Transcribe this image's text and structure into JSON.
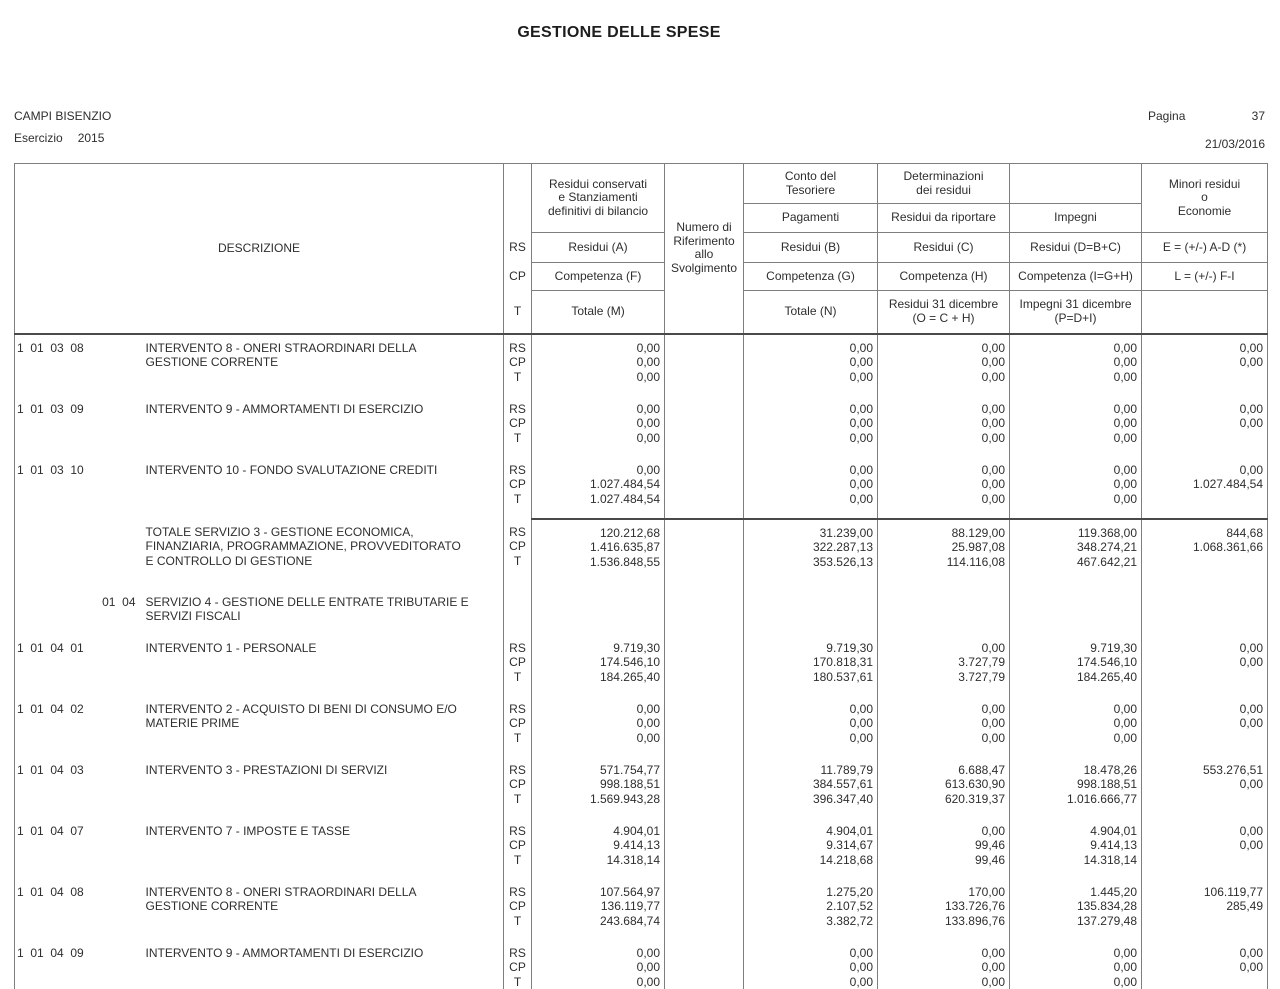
{
  "page": {
    "title": "GESTIONE DELLE SPESE",
    "entity": "CAMPI BISENZIO",
    "esercizio_label": "Esercizio",
    "esercizio_value": "2015",
    "pagina_label": "Pagina",
    "pagina_value": "37",
    "date": "21/03/2016"
  },
  "colors": {
    "background": "#ffffff",
    "text": "#2e2e2e",
    "grid_line": "#7e7e7e",
    "grid_line_strong": "#4a4a4a"
  },
  "table": {
    "header": {
      "descrizione": "DESCRIZIONE",
      "rs": "RS",
      "cp": "CP",
      "t": "T",
      "col_a": {
        "top": "Residui conservati\ne Stanziamenti\ndefinitivi di bilancio",
        "rs": "Residui (A)",
        "cp": "Competenza (F)",
        "t": "Totale (M)"
      },
      "col_num": "Numero di\nRiferimento\nallo\nSvolgimento",
      "col_b": {
        "top": "Conto del\nTesoriere",
        "sub": "Pagamenti",
        "rs": "Residui (B)",
        "cp": "Competenza (G)",
        "t": "Totale (N)"
      },
      "col_c": {
        "top": "Determinazioni\ndei residui",
        "sub": "Residui da riportare",
        "rs": "Residui (C)",
        "cp": "Competenza (H)",
        "t": "Residui 31 dicembre\n(O = C + H)"
      },
      "col_d": {
        "top": "",
        "sub": "Impegni",
        "rs": "Residui (D=B+C)",
        "cp": "Competenza (I=G+H)",
        "t": "Impegni 31 dicembre\n(P=D+I)"
      },
      "col_e": {
        "top": "Minori residui\no\nEconomie",
        "rs": "E = (+/-) A-D (*)",
        "cp": "L = (+/-) F-I",
        "t": ""
      }
    },
    "row_labels": [
      "RS",
      "CP",
      "T"
    ],
    "rows": [
      {
        "type": "detail",
        "code": "1  01  03  08",
        "description": "INTERVENTO 8 - ONERI STRAORDINARI DELLA GESTIONE CORRENTE",
        "a": [
          "0,00",
          "0,00",
          "0,00"
        ],
        "b": [
          "0,00",
          "0,00",
          "0,00"
        ],
        "c": [
          "0,00",
          "0,00",
          "0,00"
        ],
        "d": [
          "0,00",
          "0,00",
          "0,00"
        ],
        "e": [
          "0,00",
          "0,00"
        ]
      },
      {
        "type": "detail",
        "code": "1  01  03  09",
        "description": "INTERVENTO 9 - AMMORTAMENTI DI ESERCIZIO",
        "a": [
          "0,00",
          "0,00",
          "0,00"
        ],
        "b": [
          "0,00",
          "0,00",
          "0,00"
        ],
        "c": [
          "0,00",
          "0,00",
          "0,00"
        ],
        "d": [
          "0,00",
          "0,00",
          "0,00"
        ],
        "e": [
          "0,00",
          "0,00"
        ]
      },
      {
        "type": "detail",
        "code": "1  01  03  10",
        "description": "INTERVENTO 10 - FONDO SVALUTAZIONE CREDITI",
        "a": [
          "0,00",
          "1.027.484,54",
          "1.027.484,54"
        ],
        "b": [
          "0,00",
          "0,00",
          "0,00"
        ],
        "c": [
          "0,00",
          "0,00",
          "0,00"
        ],
        "d": [
          "0,00",
          "0,00",
          "0,00"
        ],
        "e": [
          "0,00",
          "1.027.484,54"
        ]
      },
      {
        "type": "total",
        "code": "",
        "description": "TOTALE SERVIZIO 3 - GESTIONE ECONOMICA, FINANZIARIA, PROGRAMMAZIONE, PROVVEDITORATO E CONTROLLO DI GESTIONE",
        "a": [
          "120.212,68",
          "1.416.635,87",
          "1.536.848,55"
        ],
        "b": [
          "31.239,00",
          "322.287,13",
          "353.526,13"
        ],
        "c": [
          "88.129,00",
          "25.987,08",
          "114.116,08"
        ],
        "d": [
          "119.368,00",
          "348.274,21",
          "467.642,21"
        ],
        "e": [
          "844,68",
          "1.068.361,66"
        ]
      },
      {
        "type": "service",
        "code": "01  04",
        "description": "SERVIZIO 4 - GESTIONE DELLE ENTRATE TRIBUTARIE E SERVIZI FISCALI"
      },
      {
        "type": "detail",
        "code": "1  01  04  01",
        "description": "INTERVENTO 1 - PERSONALE",
        "a": [
          "9.719,30",
          "174.546,10",
          "184.265,40"
        ],
        "b": [
          "9.719,30",
          "170.818,31",
          "180.537,61"
        ],
        "c": [
          "0,00",
          "3.727,79",
          "3.727,79"
        ],
        "d": [
          "9.719,30",
          "174.546,10",
          "184.265,40"
        ],
        "e": [
          "0,00",
          "0,00"
        ]
      },
      {
        "type": "detail",
        "code": "1  01  04  02",
        "description": "INTERVENTO 2 - ACQUISTO DI BENI DI CONSUMO E/O MATERIE PRIME",
        "a": [
          "0,00",
          "0,00",
          "0,00"
        ],
        "b": [
          "0,00",
          "0,00",
          "0,00"
        ],
        "c": [
          "0,00",
          "0,00",
          "0,00"
        ],
        "d": [
          "0,00",
          "0,00",
          "0,00"
        ],
        "e": [
          "0,00",
          "0,00"
        ]
      },
      {
        "type": "detail",
        "code": "1  01  04  03",
        "description": "INTERVENTO 3 - PRESTAZIONI DI SERVIZI",
        "a": [
          "571.754,77",
          "998.188,51",
          "1.569.943,28"
        ],
        "b": [
          "11.789,79",
          "384.557,61",
          "396.347,40"
        ],
        "c": [
          "6.688,47",
          "613.630,90",
          "620.319,37"
        ],
        "d": [
          "18.478,26",
          "998.188,51",
          "1.016.666,77"
        ],
        "e": [
          "553.276,51",
          "0,00"
        ]
      },
      {
        "type": "detail",
        "code": "1  01  04  07",
        "description": "INTERVENTO 7 - IMPOSTE E TASSE",
        "a": [
          "4.904,01",
          "9.414,13",
          "14.318,14"
        ],
        "b": [
          "4.904,01",
          "9.314,67",
          "14.218,68"
        ],
        "c": [
          "0,00",
          "99,46",
          "99,46"
        ],
        "d": [
          "4.904,01",
          "9.414,13",
          "14.318,14"
        ],
        "e": [
          "0,00",
          "0,00"
        ]
      },
      {
        "type": "detail",
        "code": "1  01  04  08",
        "description": "INTERVENTO 8 - ONERI STRAORDINARI DELLA GESTIONE CORRENTE",
        "a": [
          "107.564,97",
          "136.119,77",
          "243.684,74"
        ],
        "b": [
          "1.275,20",
          "2.107,52",
          "3.382,72"
        ],
        "c": [
          "170,00",
          "133.726,76",
          "133.896,76"
        ],
        "d": [
          "1.445,20",
          "135.834,28",
          "137.279,48"
        ],
        "e": [
          "106.119,77",
          "285,49"
        ]
      },
      {
        "type": "detail",
        "code": "1  01  04  09",
        "description": "INTERVENTO 9 - AMMORTAMENTI DI ESERCIZIO",
        "a": [
          "0,00",
          "0,00",
          "0,00"
        ],
        "b": [
          "0,00",
          "0,00",
          "0,00"
        ],
        "c": [
          "0,00",
          "0,00",
          "0,00"
        ],
        "d": [
          "0,00",
          "0,00",
          "0,00"
        ],
        "e": [
          "0,00",
          "0,00"
        ]
      }
    ]
  }
}
